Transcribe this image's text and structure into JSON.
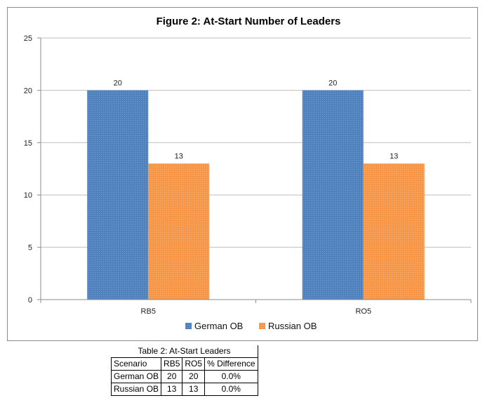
{
  "chart_data": {
    "type": "bar",
    "title": "Figure 2:  At-Start Number of Leaders",
    "categories": [
      "RB5",
      "RO5"
    ],
    "series": [
      {
        "name": "German OB",
        "values": [
          20,
          20
        ],
        "color": "#4f81bd"
      },
      {
        "name": "Russian OB",
        "values": [
          13,
          13
        ],
        "color": "#f79646"
      }
    ],
    "ylim": [
      0,
      25
    ],
    "yticks": [
      0,
      5,
      10,
      15,
      20,
      25
    ],
    "xlabel": "",
    "ylabel": "",
    "grid": true,
    "legend": "bottom"
  },
  "table": {
    "caption": "Table 2:  At-Start Leaders",
    "headers": [
      "Scenario",
      "RB5",
      "RO5",
      "% Difference"
    ],
    "rows": [
      [
        "German OB",
        "20",
        "20",
        "0.0%"
      ],
      [
        "Russian OB",
        "13",
        "13",
        "0.0%"
      ]
    ]
  }
}
